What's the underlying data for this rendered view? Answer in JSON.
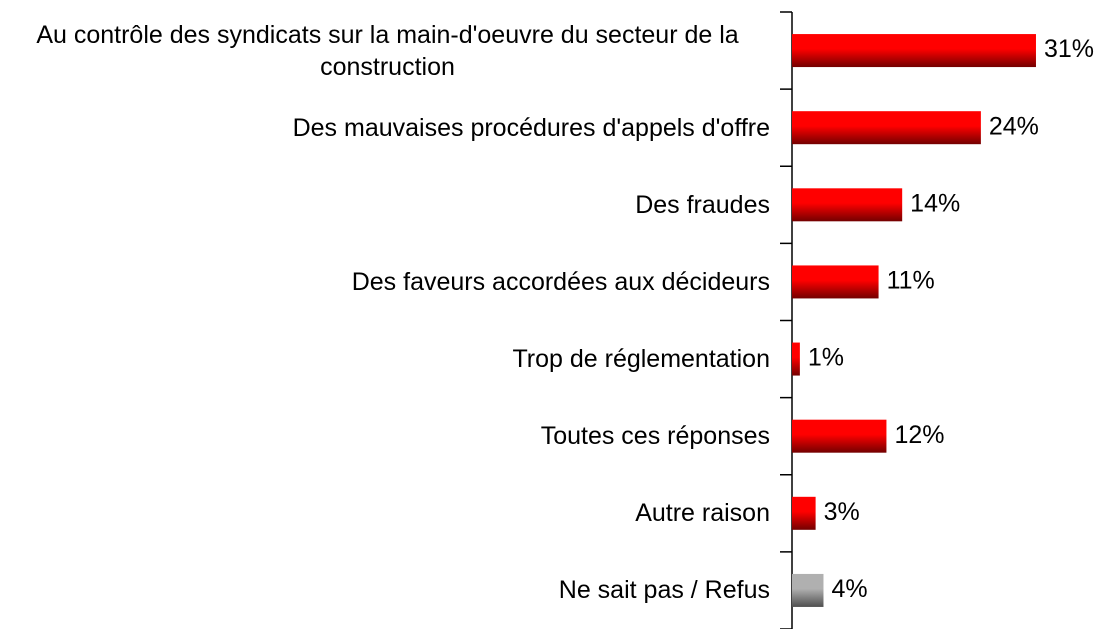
{
  "chart_data": {
    "type": "barh",
    "categories": [
      "Au contrôle des syndicats sur la main-d'oeuvre du secteur de la construction",
      "Des mauvaises procédures d'appels d'offre",
      "Des fraudes",
      "Des faveurs accordées aux décideurs",
      "Trop de réglementation",
      "Toutes ces réponses",
      "Autre raison",
      "Ne sait pas / Refus"
    ],
    "values": [
      31,
      24,
      14,
      11,
      1,
      12,
      3,
      4
    ],
    "value_labels": [
      "31%",
      "24%",
      "14%",
      "11%",
      "1%",
      "12%",
      "3%",
      "4%"
    ],
    "colors": [
      "#ff0000",
      "#ff0000",
      "#ff0000",
      "#ff0000",
      "#ff0000",
      "#ff0000",
      "#ff0000",
      "#b0b0b0"
    ]
  }
}
